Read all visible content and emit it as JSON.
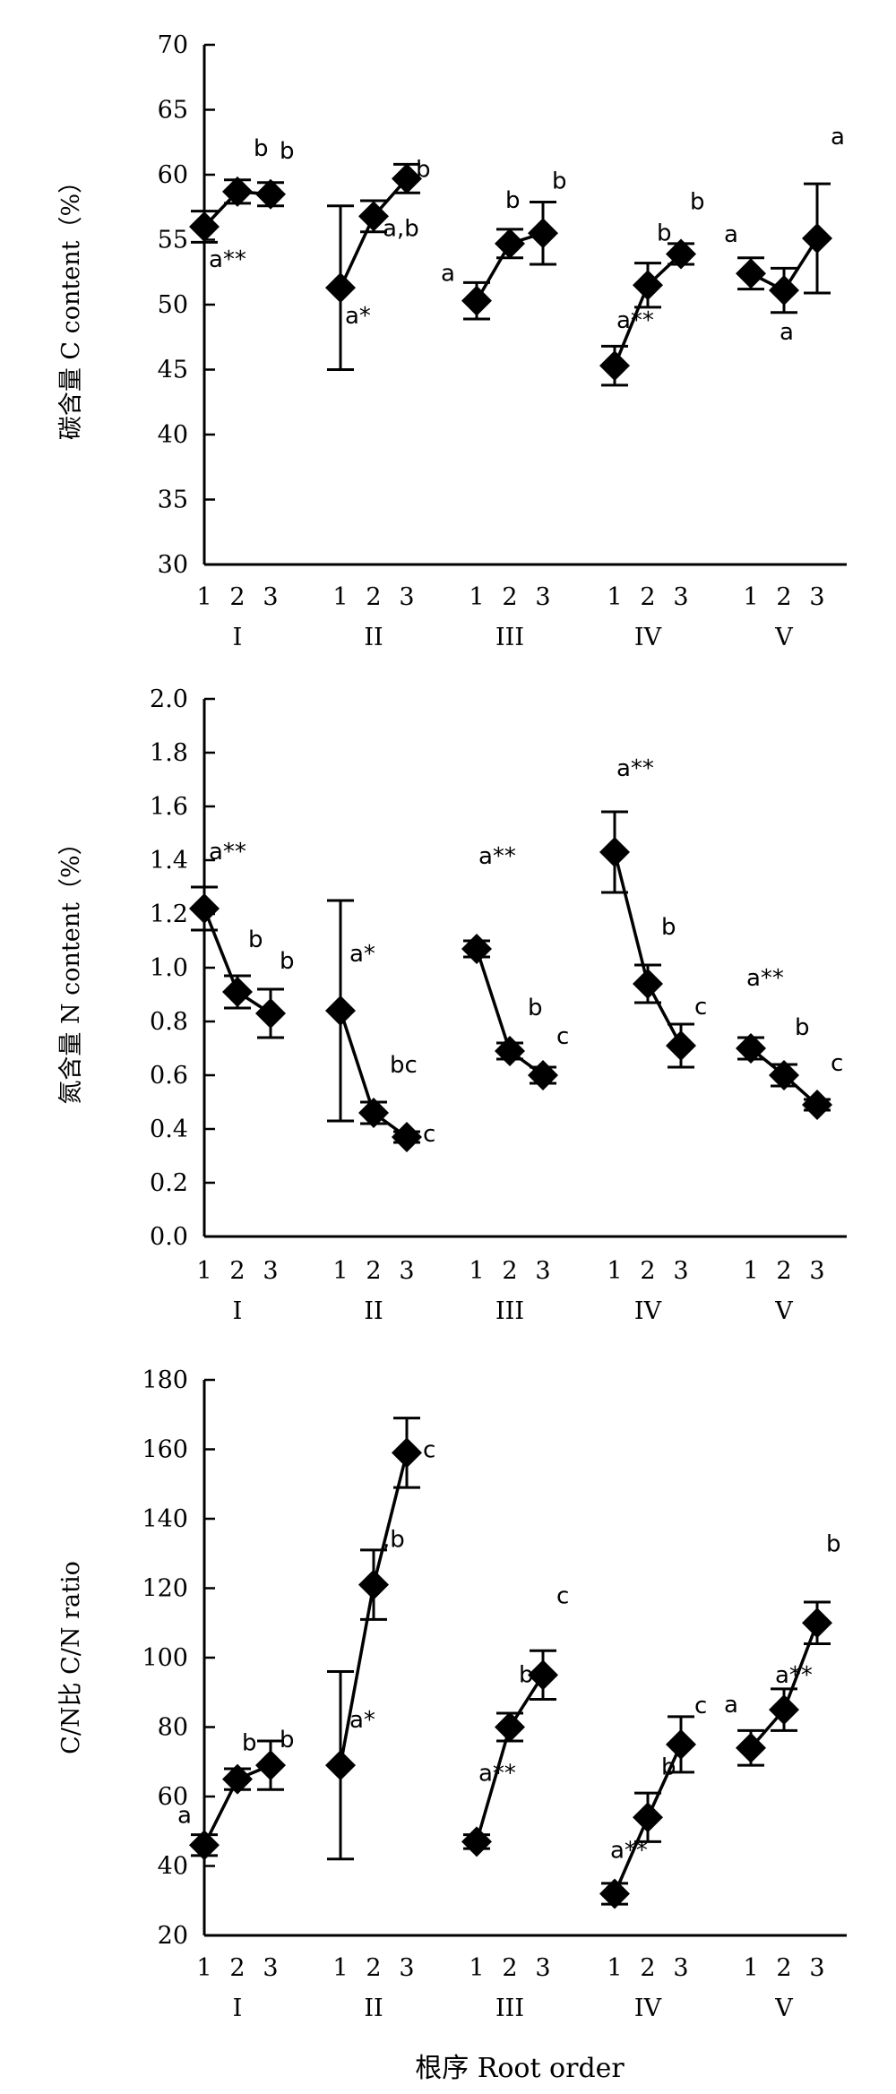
{
  "chart_data": [
    {
      "type": "line",
      "ylabel": "碳含量 C content（%）",
      "xlabel": "",
      "ylim": [
        30,
        70
      ],
      "yticks": [
        "30",
        "35",
        "40",
        "45",
        "50",
        "55",
        "60",
        "65",
        "70"
      ],
      "groups": [
        "I",
        "II",
        "III",
        "IV",
        "V"
      ],
      "orders": [
        "1",
        "2",
        "3"
      ],
      "series": [
        {
          "group": "I",
          "values": [
            56.0,
            58.7,
            58.5
          ],
          "errors": [
            1.2,
            0.9,
            0.9
          ],
          "labels": [
            "a**",
            "b",
            "b"
          ]
        },
        {
          "group": "II",
          "values": [
            51.3,
            56.8,
            59.7
          ],
          "errors": [
            6.3,
            1.2,
            1.1
          ],
          "labels": [
            "a*",
            "a,b",
            "b"
          ]
        },
        {
          "group": "III",
          "values": [
            50.3,
            54.7,
            55.5
          ],
          "errors": [
            1.4,
            1.1,
            2.4
          ],
          "labels": [
            "a",
            "b",
            "b"
          ]
        },
        {
          "group": "IV",
          "values": [
            45.3,
            51.5,
            53.9
          ],
          "errors": [
            1.5,
            1.7,
            0.8
          ],
          "labels": [
            "a**",
            "b",
            "b"
          ]
        },
        {
          "group": "V",
          "values": [
            52.4,
            51.1,
            55.1
          ],
          "errors": [
            1.2,
            1.7,
            4.2
          ],
          "labels": [
            "a",
            "a",
            "a"
          ]
        }
      ]
    },
    {
      "type": "line",
      "ylabel": "氮含量 N content（%）",
      "xlabel": "",
      "ylim": [
        0,
        2
      ],
      "yticks": [
        "0.0",
        "0.2",
        "0.4",
        "0.6",
        "0.8",
        "1.0",
        "1.2",
        "1.4",
        "1.6",
        "1.8",
        "2.0"
      ],
      "groups": [
        "I",
        "II",
        "III",
        "IV",
        "V"
      ],
      "orders": [
        "1",
        "2",
        "3"
      ],
      "series": [
        {
          "group": "I",
          "values": [
            1.22,
            0.91,
            0.83
          ],
          "errors": [
            0.08,
            0.06,
            0.09
          ],
          "labels": [
            "a**",
            "b",
            "b"
          ]
        },
        {
          "group": "II",
          "values": [
            0.84,
            0.46,
            0.37
          ],
          "errors": [
            0.41,
            0.04,
            0.02
          ],
          "labels": [
            "a*",
            "bc",
            "c"
          ]
        },
        {
          "group": "III",
          "values": [
            1.07,
            0.69,
            0.6
          ],
          "errors": [
            0.03,
            0.03,
            0.03
          ],
          "labels": [
            "a**",
            "b",
            "c"
          ]
        },
        {
          "group": "IV",
          "values": [
            1.43,
            0.94,
            0.71
          ],
          "errors": [
            0.15,
            0.07,
            0.08
          ],
          "labels": [
            "a**",
            "b",
            "c"
          ]
        },
        {
          "group": "V",
          "values": [
            0.7,
            0.6,
            0.49
          ],
          "errors": [
            0.04,
            0.04,
            0.02
          ],
          "labels": [
            "a**",
            "b",
            "c"
          ]
        }
      ]
    },
    {
      "type": "line",
      "ylabel": "C/N比 C/N ratio",
      "xlabel": "根序 Root order",
      "ylim": [
        20,
        180
      ],
      "yticks": [
        "20",
        "40",
        "60",
        "80",
        "100",
        "120",
        "140",
        "160",
        "180"
      ],
      "groups": [
        "I",
        "II",
        "III",
        "IV",
        "V"
      ],
      "orders": [
        "1",
        "2",
        "3"
      ],
      "series": [
        {
          "group": "I",
          "values": [
            46,
            65,
            69
          ],
          "errors": [
            3,
            3,
            7
          ],
          "labels": [
            "a",
            "b",
            "b"
          ]
        },
        {
          "group": "II",
          "values": [
            69,
            121,
            159
          ],
          "errors": [
            27,
            10,
            10
          ],
          "labels": [
            "a*",
            ",b",
            "c"
          ]
        },
        {
          "group": "III",
          "values": [
            47,
            80,
            95
          ],
          "errors": [
            2,
            4,
            7
          ],
          "labels": [
            "a**",
            "b",
            "c"
          ]
        },
        {
          "group": "IV",
          "values": [
            32,
            54,
            75
          ],
          "errors": [
            3,
            7,
            8
          ],
          "labels": [
            "a**",
            "b",
            "c"
          ]
        },
        {
          "group": "V",
          "values": [
            74,
            85,
            110
          ],
          "errors": [
            5,
            6,
            6
          ],
          "labels": [
            "a",
            "a**",
            "b"
          ]
        }
      ]
    }
  ]
}
